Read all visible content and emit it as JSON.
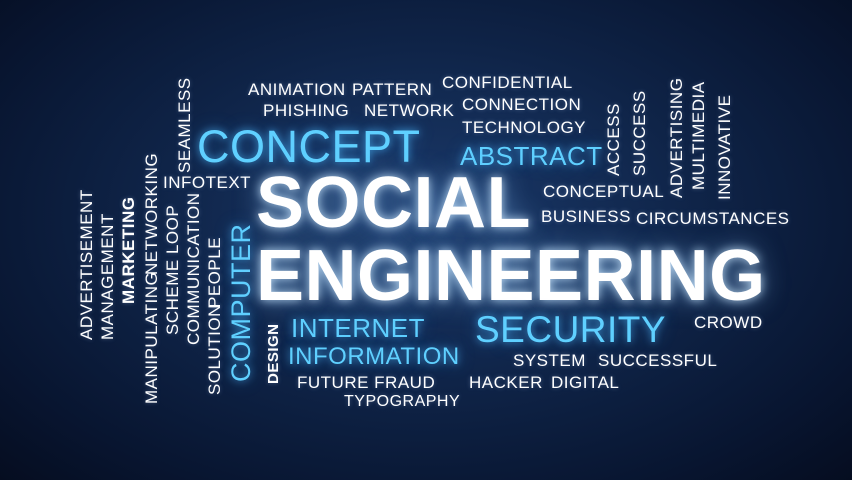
{
  "colors": {
    "background": "#0f2448",
    "accent": "#5fd0ff",
    "text": "#ffffff"
  },
  "title": {
    "line1": "SOCIAL",
    "line2": "ENGINEERING"
  },
  "words": {
    "animation": "ANIMATION",
    "pattern": "PATTERN",
    "confidential": "CONFIDENTIAL",
    "phishing": "PHISHING",
    "network": "NETWORK",
    "connection": "CONNECTION",
    "concept": "CONCEPT",
    "technology": "TECHNOLOGY",
    "abstract": "ABSTRACT",
    "access": "ACCESS",
    "success": "SUCCESS",
    "advertising": "ADVERTISING",
    "multimedia": "MULTIMEDIA",
    "innovative": "INNOVATIVE",
    "seamless": "SEAMLESS",
    "infotext": "INFOTEXT",
    "conceptual": "CONCEPTUAL",
    "business": "BUSINESS",
    "circumstances": "CIRCUMSTANCES",
    "advertisement": "ADVERTISEMENT",
    "management": "MANAGEMENT",
    "marketing": "MARKETING",
    "manipulating": "MANIPULATING",
    "networking": "NETWORKING",
    "scheme_loop": "SCHEME LOOP",
    "communication": "COMMUNICATION",
    "solution": "SOLUTION",
    "people": "PEOPLE",
    "computer": "COMPUTER",
    "design": "DESIGN",
    "internet": "INTERNET",
    "security": "SECURITY",
    "crowd": "CROWD",
    "information": "INFORMATION",
    "system": "SYSTEM",
    "successful": "SUCCESSFUL",
    "future_fraud": "FUTURE FRAUD",
    "hacker": "HACKER",
    "digital": "DIGITAL",
    "typography": "TYPOGRAPHY"
  }
}
